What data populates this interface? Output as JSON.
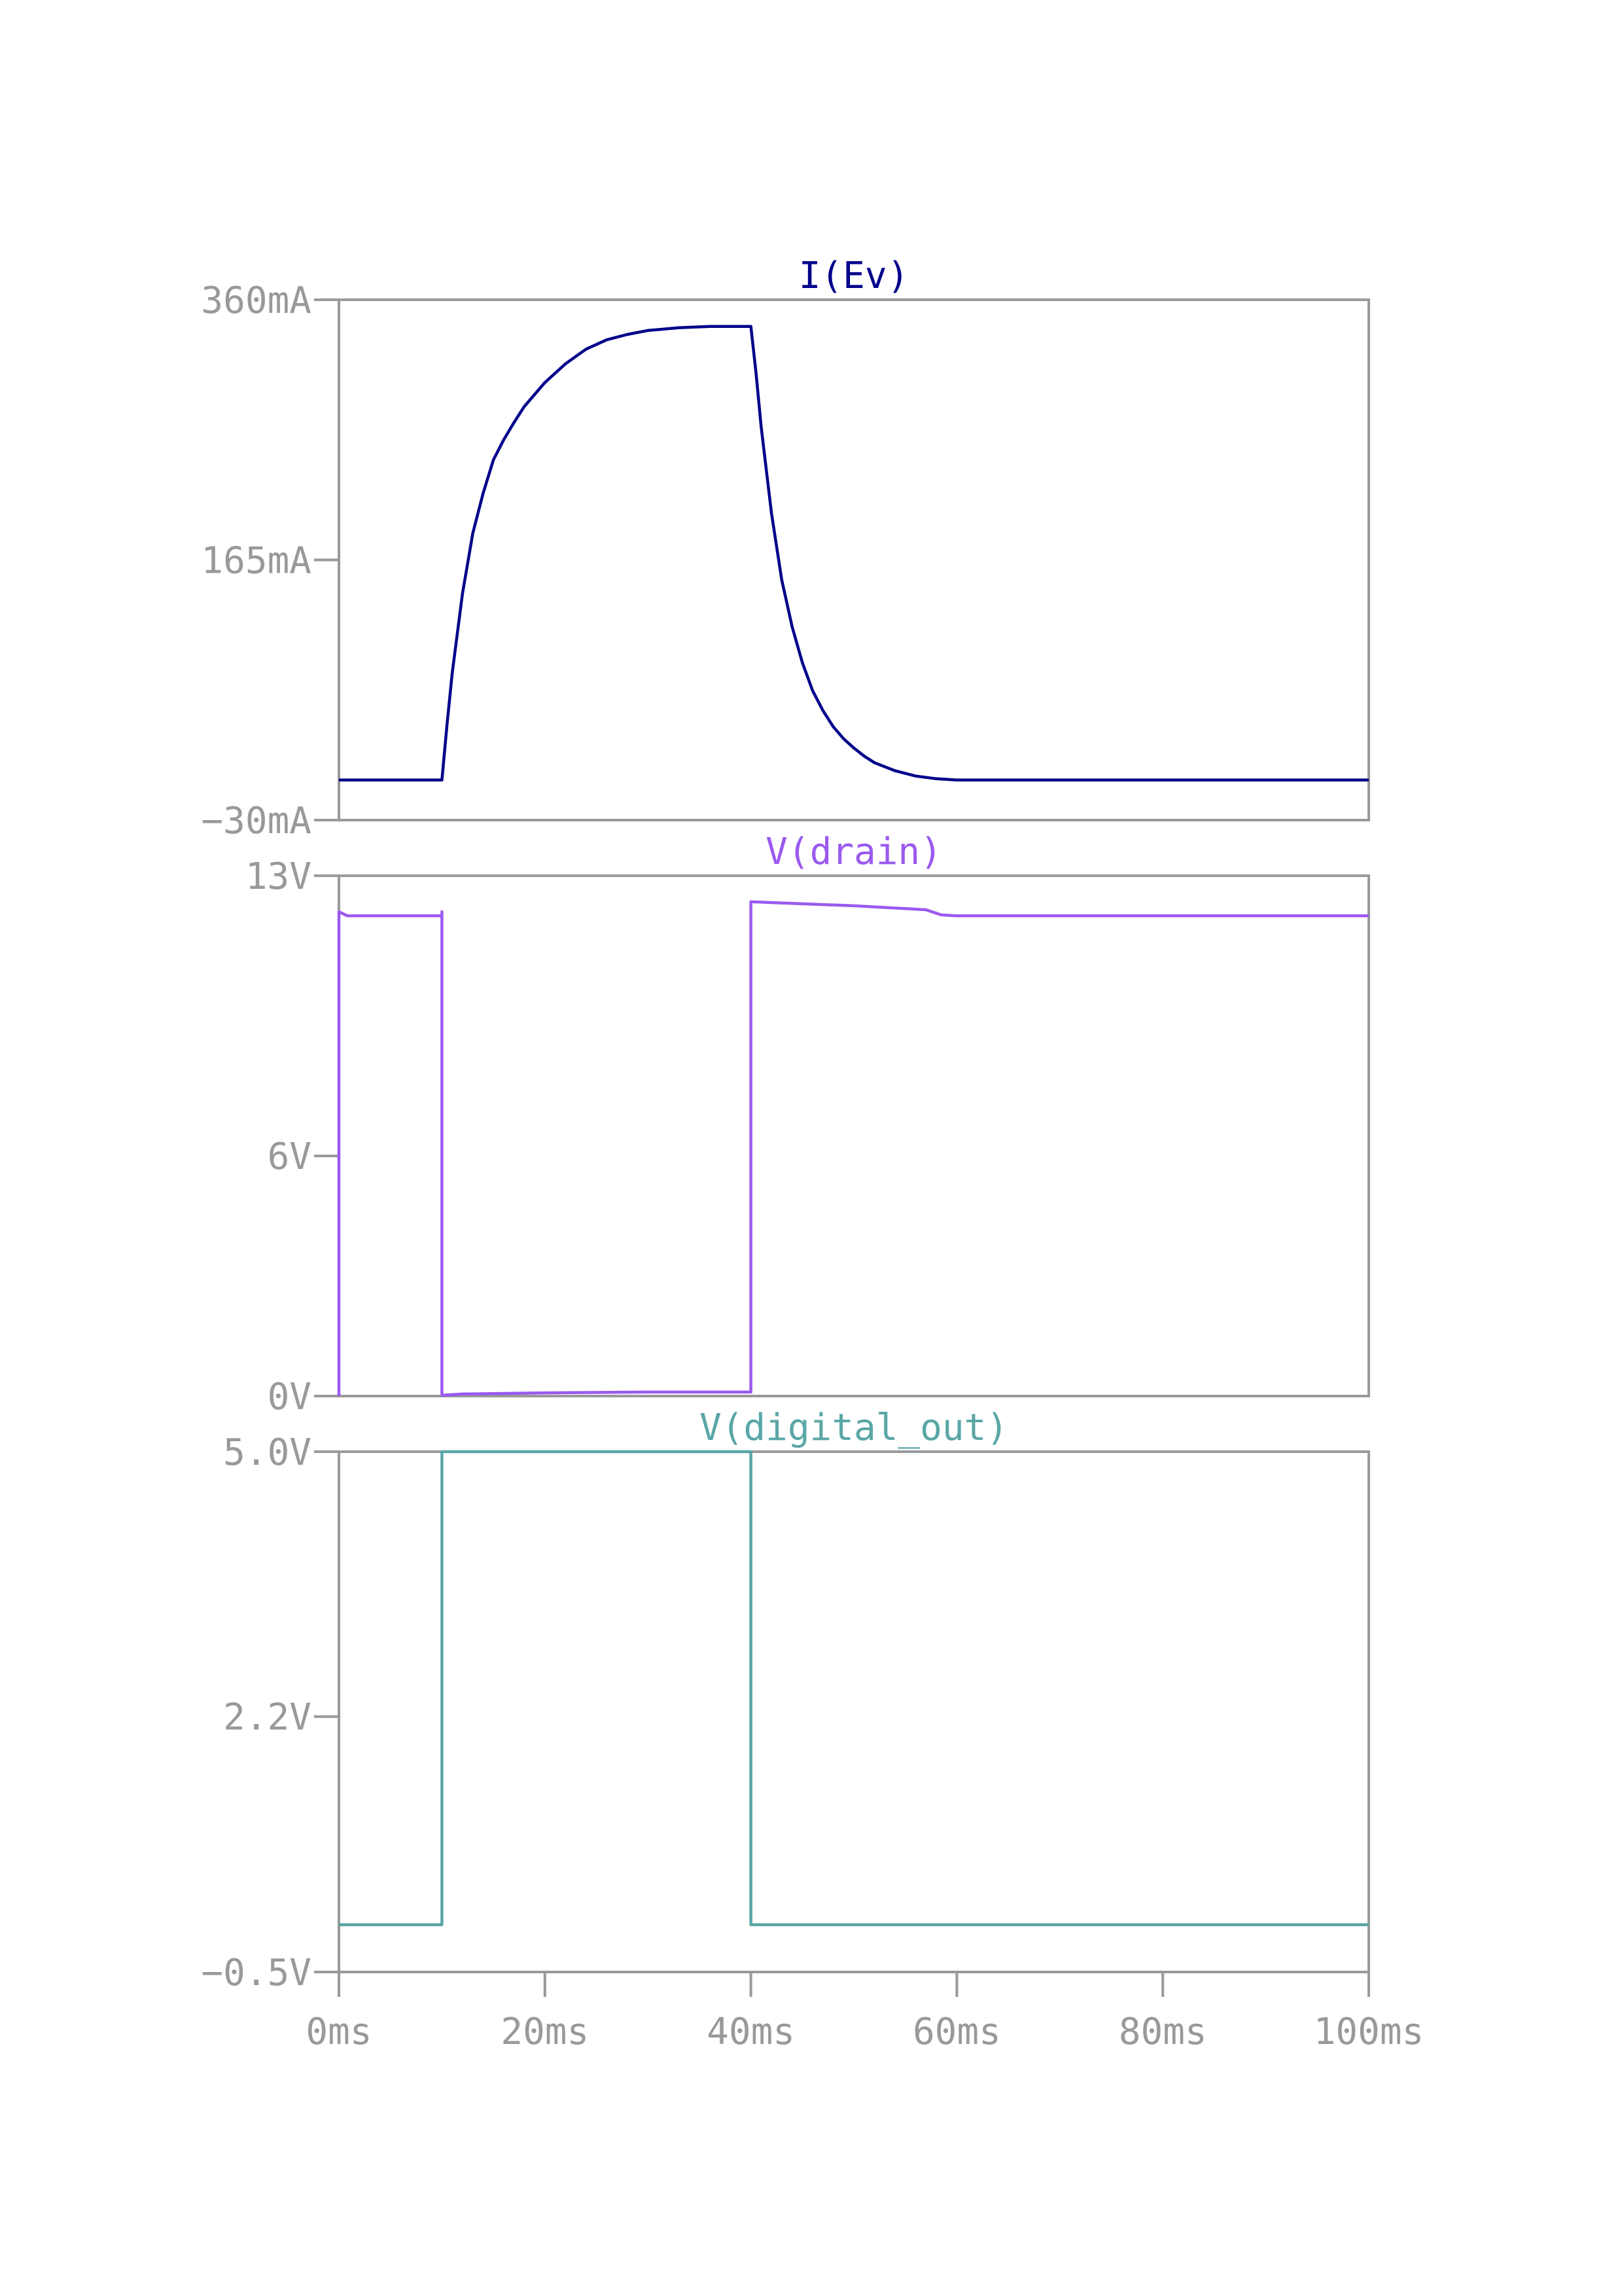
{
  "chart_data": [
    {
      "type": "line",
      "title": "I(Ev)",
      "color": "#00008b",
      "ylim": [
        -30,
        360
      ],
      "yticks": [
        {
          "value": 360,
          "label": "360mA"
        },
        {
          "value": 165,
          "label": "165mA"
        },
        {
          "value": -30,
          "label": "−30mA"
        }
      ],
      "xlim": [
        0,
        100
      ],
      "x": [
        0,
        10,
        10.5,
        11,
        12,
        13,
        14,
        15,
        16,
        17,
        18,
        20,
        22,
        24,
        26,
        28,
        30,
        33,
        36,
        40,
        40.5,
        41,
        42,
        43,
        44,
        45,
        46,
        47,
        48,
        49,
        50,
        51,
        52,
        54,
        56,
        58,
        60,
        100
      ],
      "y": [
        0,
        0,
        42,
        80,
        140,
        185,
        215,
        240,
        255,
        268,
        280,
        298,
        312,
        323,
        330,
        334,
        337,
        339,
        340,
        340,
        305,
        265,
        200,
        150,
        115,
        88,
        67,
        52,
        40,
        31,
        24,
        18,
        13,
        7,
        3,
        1,
        0,
        0
      ]
    },
    {
      "type": "line",
      "title": "V(drain)",
      "color": "#9b59ef",
      "ylim": [
        0,
        13
      ],
      "yticks": [
        {
          "value": 13,
          "label": "13V"
        },
        {
          "value": 6,
          "label": "6V"
        },
        {
          "value": 0,
          "label": "0V"
        }
      ],
      "xlim": [
        0,
        100
      ],
      "x": [
        0,
        0,
        0.8,
        10,
        10,
        10,
        12,
        20,
        30,
        40,
        40,
        40,
        50,
        57,
        58.5,
        60,
        100
      ],
      "y": [
        0,
        12.1,
        12,
        12,
        12.1,
        0.02,
        0.05,
        0.08,
        0.1,
        0.1,
        0.1,
        12.35,
        12.25,
        12.15,
        12.02,
        12,
        12
      ]
    },
    {
      "type": "line",
      "title": "V(digital_out)",
      "color": "#5aa6a6",
      "ylim": [
        -0.5,
        5.0
      ],
      "yticks": [
        {
          "value": 5.0,
          "label": "5.0V"
        },
        {
          "value": 2.2,
          "label": "2.2V"
        },
        {
          "value": -0.5,
          "label": "−0.5V"
        }
      ],
      "xlim": [
        0,
        100
      ],
      "xticks": [
        {
          "value": 0,
          "label": "0ms"
        },
        {
          "value": 20,
          "label": "20ms"
        },
        {
          "value": 40,
          "label": "40ms"
        },
        {
          "value": 60,
          "label": "60ms"
        },
        {
          "value": 80,
          "label": "80ms"
        },
        {
          "value": 100,
          "label": "100ms"
        }
      ],
      "x": [
        0,
        10,
        10,
        40,
        40,
        100
      ],
      "y": [
        0,
        0,
        5.0,
        5.0,
        0,
        0
      ]
    }
  ]
}
